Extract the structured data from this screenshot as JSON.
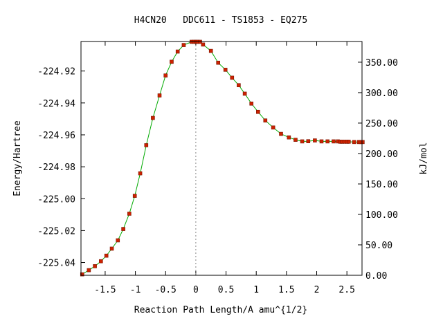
{
  "chart_data": {
    "type": "line",
    "title": "H4CN20   DDC611 - TS1853 - EQ275",
    "xlabel": "Reaction Path Length/A amu^{1/2}",
    "ylabel": "Energy/Hartree",
    "y2label": "kJ/mol",
    "xlim": [
      -1.9,
      2.75
    ],
    "ylim": [
      -225.048,
      -224.9015
    ],
    "y2lim": [
      0.0,
      384.0
    ],
    "x_ticks": [
      "-1.5",
      "-1",
      "-0.5",
      "0",
      "0.5",
      "1",
      "1.5",
      "2",
      "2.5"
    ],
    "y_ticks": [
      "-224.92",
      "-224.94",
      "-224.96",
      "-224.98",
      "-225.00",
      "-225.02",
      "-225.04"
    ],
    "y2_ticks": [
      "0.00",
      "50.00",
      "100.00",
      "150.00",
      "200.00",
      "250.00",
      "300.00",
      "350.00"
    ],
    "grid": false,
    "transition_state_marker_x": 0,
    "colors": {
      "line": "#00aa00",
      "marker": "#cc2200",
      "ts_line": "#888888"
    },
    "series": [
      {
        "x": [
          -1.88,
          -1.77,
          -1.67,
          -1.57,
          -1.48,
          -1.39,
          -1.29,
          -1.2,
          -1.1,
          -1.01,
          -0.92,
          -0.82,
          -0.71,
          -0.6,
          -0.5,
          -0.4,
          -0.3,
          -0.2,
          -0.07,
          -0.03,
          0.0,
          0.03,
          0.07,
          0.12,
          0.25,
          0.37,
          0.49,
          0.6,
          0.71,
          0.81,
          0.92,
          1.03,
          1.15,
          1.28,
          1.41,
          1.54,
          1.65,
          1.76,
          1.86,
          1.97,
          2.08,
          2.18,
          2.28,
          2.35,
          2.39,
          2.42,
          2.46,
          2.5,
          2.53,
          2.62,
          2.7,
          2.73,
          2.76
        ],
        "y": [
          -225.0474,
          -225.0448,
          -225.0423,
          -225.0392,
          -225.0357,
          -225.0313,
          -225.0261,
          -225.019,
          -225.0094,
          -224.9982,
          -224.9841,
          -224.9665,
          -224.9494,
          -224.9353,
          -224.9228,
          -224.9142,
          -224.9078,
          -224.9037,
          -224.9017,
          -224.9017,
          -224.9017,
          -224.9017,
          -224.9017,
          -224.9034,
          -224.9074,
          -224.9148,
          -224.9192,
          -224.9242,
          -224.9289,
          -224.9342,
          -224.9404,
          -224.9456,
          -224.951,
          -224.9554,
          -224.9594,
          -224.9616,
          -224.9631,
          -224.9641,
          -224.964,
          -224.9635,
          -224.9641,
          -224.9641,
          -224.9641,
          -224.9641,
          -224.9643,
          -224.9643,
          -224.9643,
          -224.9643,
          -224.9643,
          -224.9645,
          -224.9645,
          -224.9645,
          -224.9645
        ]
      }
    ]
  }
}
